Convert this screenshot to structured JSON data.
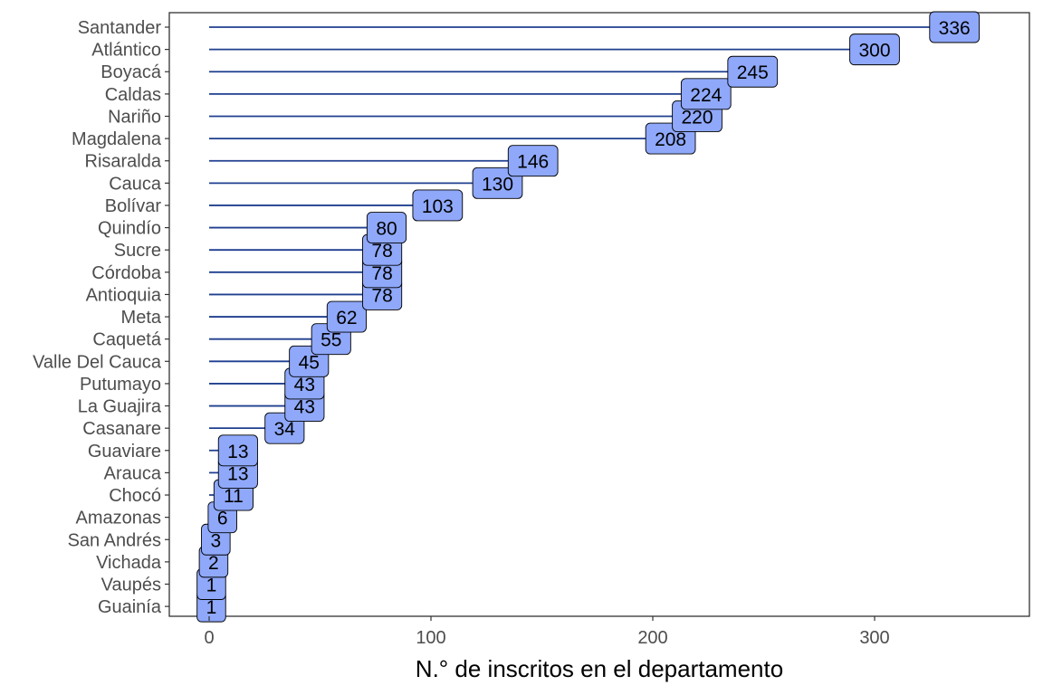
{
  "chart_data": {
    "type": "bar",
    "subtype": "lollipop-with-labels",
    "orientation": "horizontal",
    "categories": [
      "Santander",
      "Atlántico",
      "Boyacá",
      "Caldas",
      "Nariño",
      "Magdalena",
      "Risaralda",
      "Cauca",
      "Bolívar",
      "Quindío",
      "Sucre",
      "Córdoba",
      "Antioquia",
      "Meta",
      "Caquetá",
      "Valle Del Cauca",
      "Putumayo",
      "La Guajira",
      "Casanare",
      "Guaviare",
      "Arauca",
      "Chocó",
      "Amazonas",
      "San Andrés",
      "Vichada",
      "Vaupés",
      "Guainía"
    ],
    "values": [
      336,
      300,
      245,
      224,
      220,
      208,
      146,
      130,
      103,
      80,
      78,
      78,
      78,
      62,
      55,
      45,
      43,
      43,
      34,
      13,
      13,
      11,
      6,
      3,
      2,
      1,
      1
    ],
    "title": "",
    "xlabel": "N.° de inscritos en el departamento",
    "ylabel": "",
    "xlim": [
      -5,
      370
    ],
    "xticks": [
      0,
      100,
      200,
      300
    ],
    "grid": false,
    "legend": "none",
    "colors": {
      "segment": "#1f3f8f",
      "label_fill": "#8fa8fa",
      "label_border": "#000000",
      "panel_border": "#333333",
      "tick_text": "#4d4d4d"
    }
  }
}
